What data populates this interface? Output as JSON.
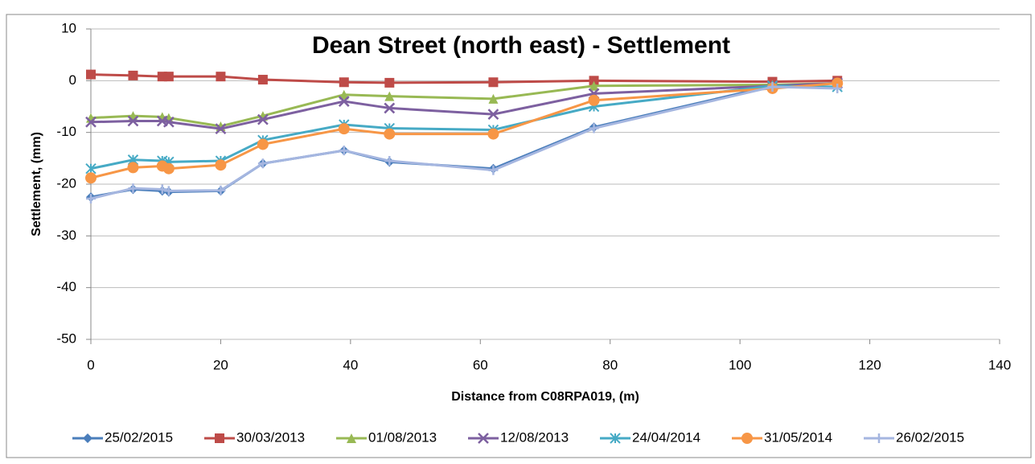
{
  "chart_data": {
    "type": "line",
    "title": "Dean Street (north east) -  Settlement",
    "x_label": "Distance from C08RPA019, (m)",
    "y_label": "Settlement, (mm)",
    "x": [
      0,
      6.5,
      11,
      12,
      20,
      26.5,
      39,
      46,
      62,
      77.5,
      105,
      115
    ],
    "xlim": [
      0,
      140
    ],
    "xticks": [
      0,
      20,
      40,
      60,
      80,
      100,
      120,
      140
    ],
    "ylim": [
      -50,
      10
    ],
    "yticks": [
      -50,
      -40,
      -30,
      -20,
      -10,
      0,
      10
    ],
    "grid": true,
    "legend": "bottom",
    "series": [
      {
        "name": "25/02/2015",
        "color": "#4a7ebb",
        "marker": "diamond",
        "values": [
          -22.5,
          -21,
          -21.3,
          -21.5,
          -21.3,
          -16,
          -13.5,
          -15.7,
          -17,
          -9,
          -1,
          -0.5
        ]
      },
      {
        "name": "30/03/2013",
        "color": "#be4b48",
        "marker": "square",
        "values": [
          1.2,
          1,
          0.8,
          0.8,
          0.8,
          0.2,
          -0.3,
          -0.4,
          -0.3,
          0,
          -0.2,
          0
        ]
      },
      {
        "name": "01/08/2013",
        "color": "#98b954",
        "marker": "triangle",
        "values": [
          -7.2,
          -6.8,
          -7,
          -7.2,
          -8.8,
          -6.8,
          -2.7,
          -3,
          -3.5,
          -1,
          -0.8,
          -0.5
        ]
      },
      {
        "name": "12/08/2013",
        "color": "#7d60a0",
        "marker": "x",
        "values": [
          -8,
          -7.8,
          -7.8,
          -8,
          -9.3,
          -7.5,
          -4,
          -5.3,
          -6.5,
          -2.5,
          -1,
          -0.5
        ]
      },
      {
        "name": "24/04/2014",
        "color": "#46aac5",
        "marker": "star",
        "values": [
          -17,
          -15.3,
          -15.5,
          -15.7,
          -15.5,
          -11.5,
          -8.5,
          -9.2,
          -9.5,
          -5,
          -1,
          -1.2
        ]
      },
      {
        "name": "31/05/2014",
        "color": "#f79646",
        "marker": "circle",
        "values": [
          -18.8,
          -16.8,
          -16.5,
          -17,
          -16.3,
          -12.3,
          -9.3,
          -10.3,
          -10.3,
          -3.8,
          -1.5,
          -0.5
        ]
      },
      {
        "name": "26/02/2015",
        "color": "#a5b6e0",
        "marker": "plus",
        "values": [
          -22.8,
          -20.8,
          -21,
          -21.3,
          -21.2,
          -16,
          -13.5,
          -15.5,
          -17.3,
          -9.2,
          -1.2,
          -1.5
        ]
      }
    ]
  }
}
